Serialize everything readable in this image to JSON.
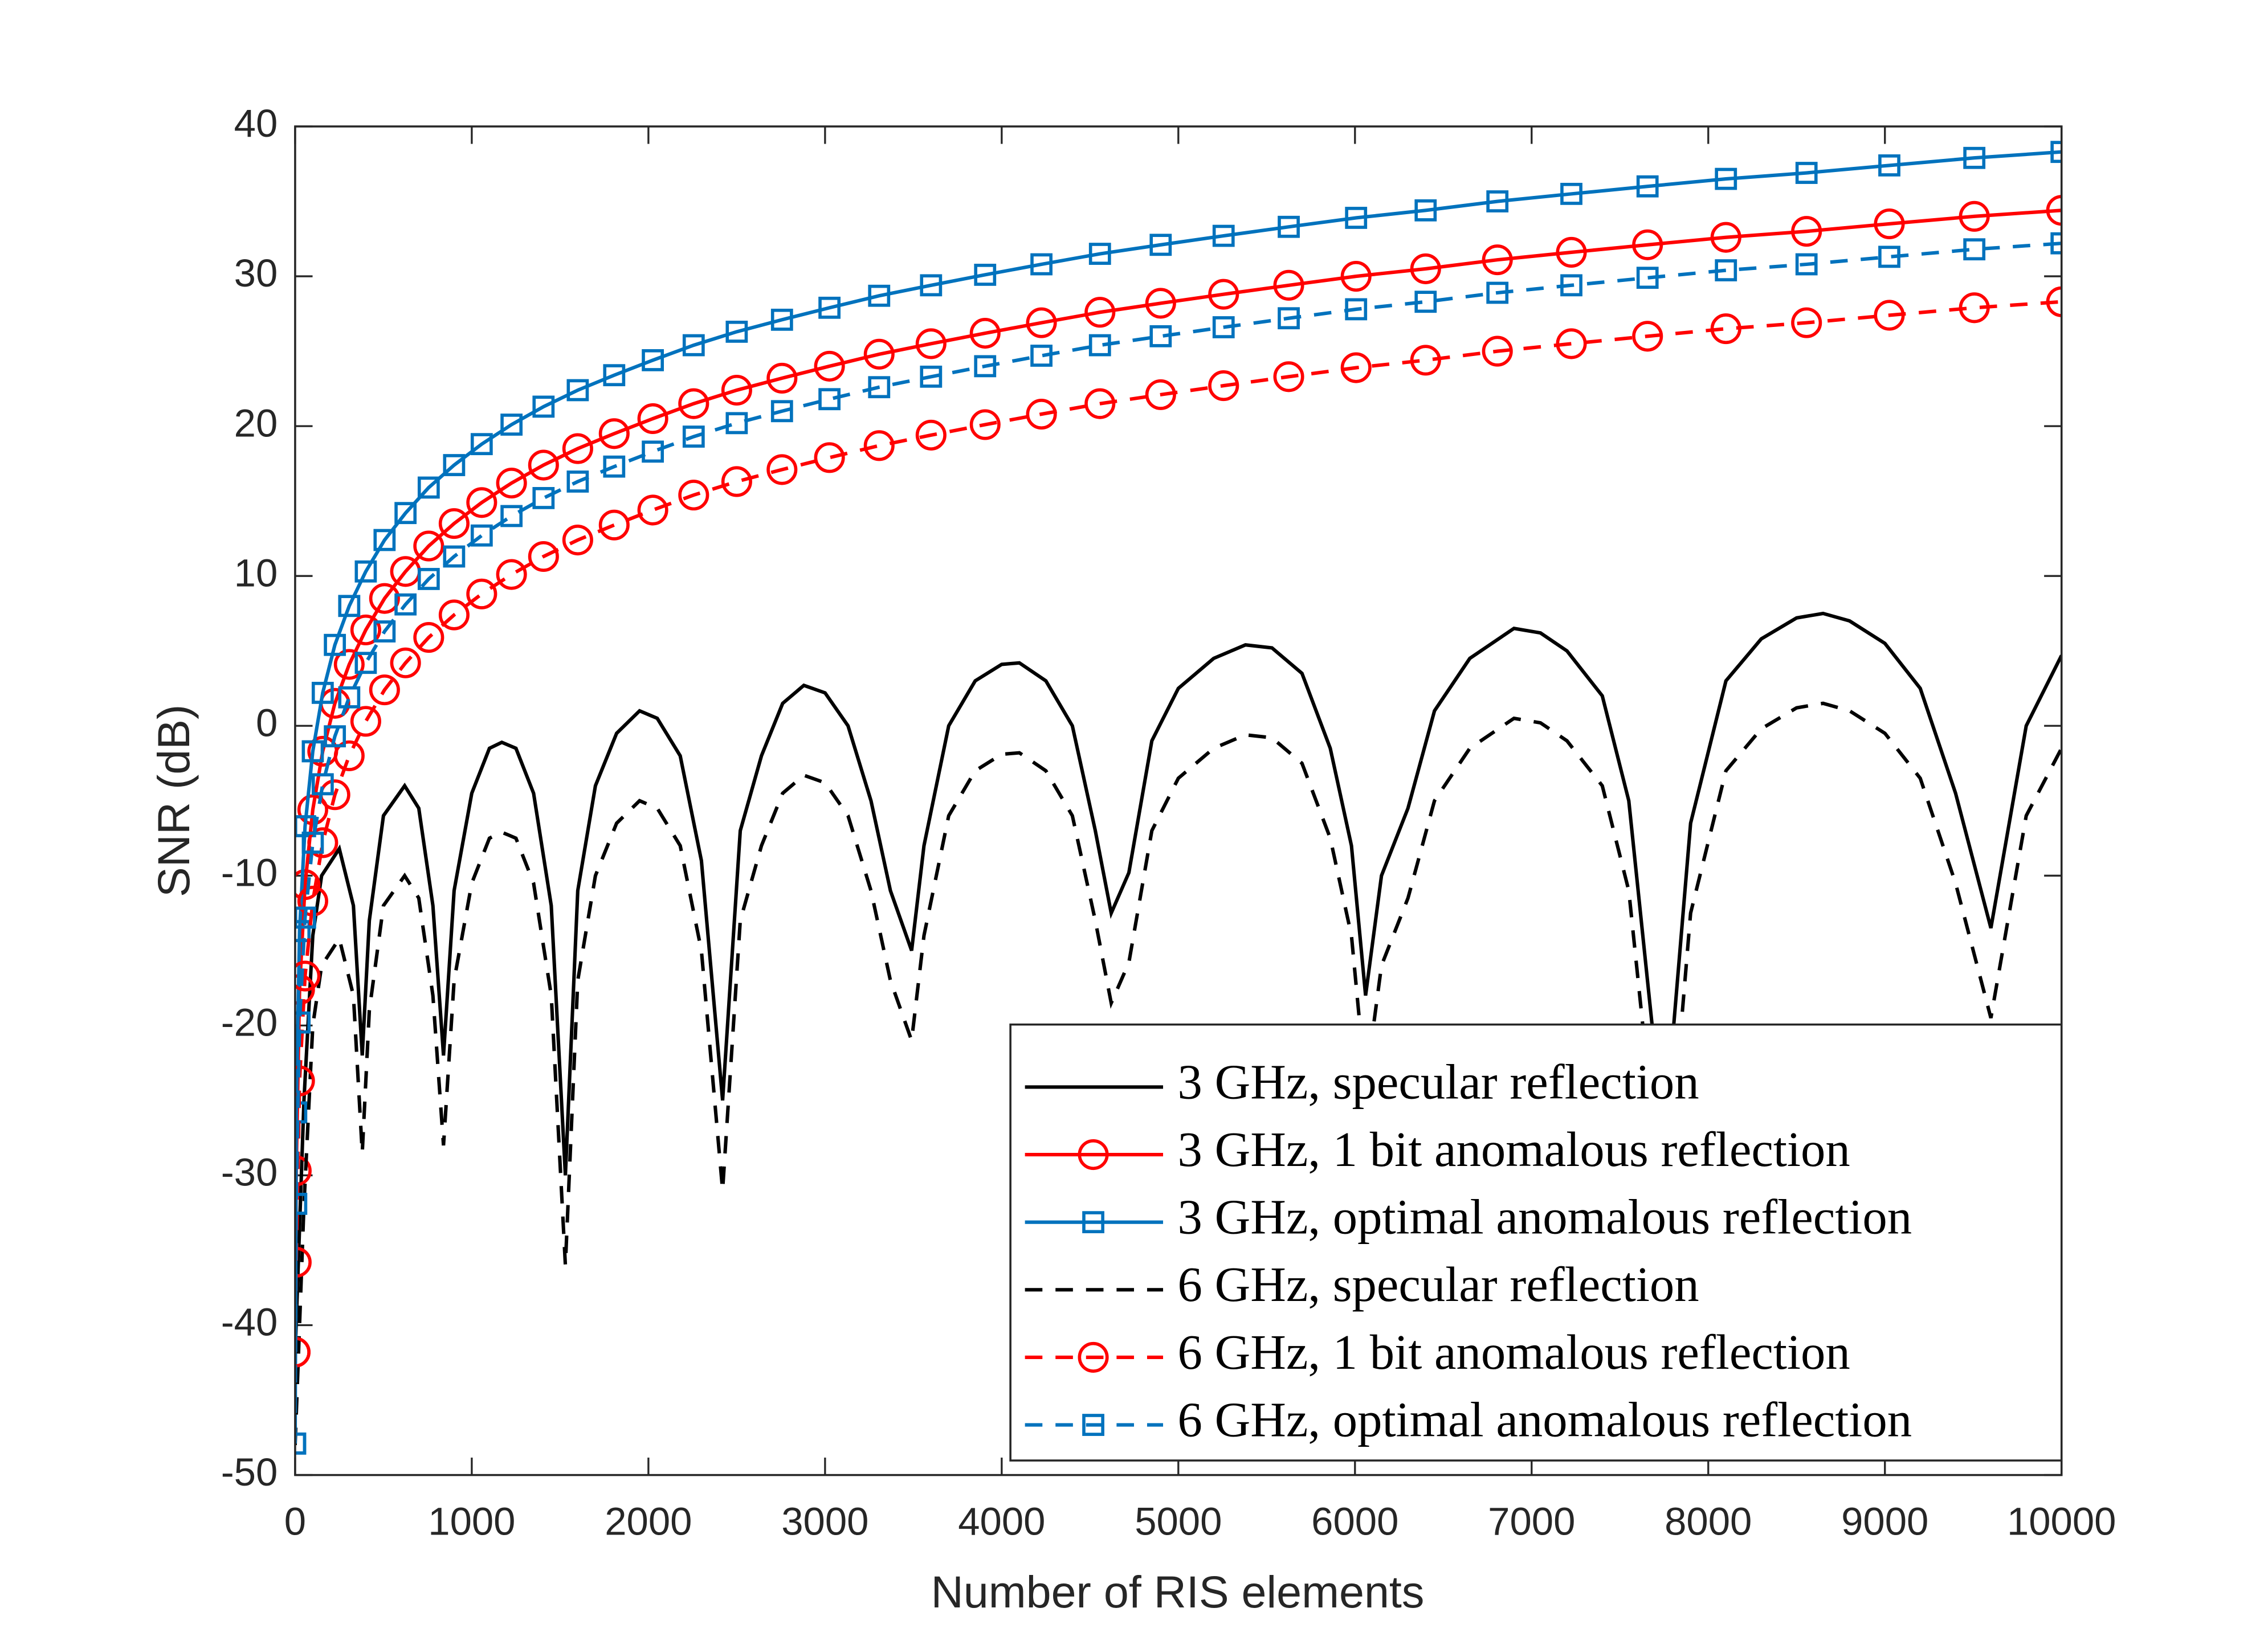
{
  "chart_data": {
    "type": "line",
    "xlabel": "Number of RIS elements",
    "ylabel": "SNR  (dB)",
    "xlim": [
      0,
      10000
    ],
    "xticks": [
      0,
      1000,
      2000,
      3000,
      4000,
      5000,
      6000,
      7000,
      8000,
      9000,
      10000
    ],
    "ylim": [
      -50,
      40
    ],
    "yticks": [
      -50,
      -40,
      -30,
      -20,
      -10,
      0,
      10,
      20,
      30,
      40
    ],
    "legend": "lower right",
    "series": [
      {
        "name": "3 GHz, specular reflection",
        "color": "#000000",
        "linestyle": "solid",
        "marker": "none",
        "x": [
          0,
          50,
          100,
          150,
          250,
          330,
          380,
          420,
          500,
          620,
          700,
          780,
          840,
          900,
          1000,
          1100,
          1170,
          1250,
          1350,
          1450,
          1530,
          1600,
          1700,
          1820,
          1950,
          2050,
          2180,
          2300,
          2420,
          2520,
          2640,
          2760,
          2880,
          3000,
          3130,
          3260,
          3370,
          3490,
          3560,
          3700,
          3850,
          4000,
          4100,
          4250,
          4400,
          4530,
          4620,
          4720,
          4850,
          5000,
          5200,
          5380,
          5530,
          5700,
          5860,
          5980,
          6060,
          6150,
          6300,
          6450,
          6650,
          6900,
          7050,
          7200,
          7400,
          7550,
          7700,
          7790,
          7900,
          8100,
          8300,
          8500,
          8650,
          8800,
          9000,
          9200,
          9400,
          9600,
          9800,
          10000
        ],
        "values": [
          -42,
          -25,
          -14,
          -10,
          -8.2,
          -12,
          -22,
          -13,
          -6,
          -4,
          -5.5,
          -12,
          -22,
          -11,
          -4.5,
          -1.5,
          -1.1,
          -1.5,
          -4.5,
          -12,
          -30,
          -11,
          -4,
          -0.5,
          1,
          0.5,
          -2,
          -9,
          -25,
          -7,
          -2,
          1.5,
          2.7,
          2.2,
          0,
          -5,
          -11,
          -15,
          -8,
          0,
          3,
          4.1,
          4.2,
          3,
          0,
          -7,
          -12.5,
          -9.8,
          -1,
          2.5,
          4.5,
          5.4,
          5.2,
          3.5,
          -1.5,
          -8,
          -18,
          -10,
          -5.5,
          1,
          4.5,
          6.5,
          6.2,
          5,
          2,
          -5,
          -22,
          -22,
          -6.5,
          3,
          5.8,
          7.2,
          7.5,
          7,
          5.5,
          2.5,
          -4.5,
          -13.5,
          0,
          4.7
        ]
      },
      {
        "name": "3 GHz, 1 bit anomalous reflection",
        "color": "#ff0000",
        "linestyle": "solid",
        "marker": "o",
        "x": [
          0,
          6.25,
          25,
          56.25,
          100,
          156.25,
          225,
          306.25,
          400,
          506.25,
          625,
          756.25,
          900,
          1056.25,
          1225,
          1406.25,
          1600,
          1806.25,
          2025,
          2256.25,
          2500,
          2756.25,
          3025,
          3306.25,
          3600,
          3906.25,
          4225,
          4556.25,
          4900,
          5256.25,
          5625,
          6006.25,
          6400,
          6806.25,
          7225,
          7656.25,
          8100,
          8556.25,
          9025,
          9506.25,
          10000
        ],
        "values": [
          -41.8,
          -29.7,
          -17.6,
          -10.6,
          -5.6,
          -1.7,
          1.5,
          4.1,
          6.4,
          8.5,
          10.3,
          12.0,
          13.5,
          14.9,
          16.2,
          17.4,
          18.5,
          19.5,
          20.5,
          21.5,
          22.4,
          23.2,
          24.0,
          24.8,
          25.5,
          26.2,
          26.9,
          27.6,
          28.2,
          28.8,
          29.4,
          30.0,
          30.5,
          31.1,
          31.6,
          32.1,
          32.6,
          33.0,
          33.5,
          34.0,
          34.4
        ]
      },
      {
        "name": "3 GHz, optimal anomalous reflection",
        "color": "#0072bd",
        "linestyle": "solid",
        "marker": "s",
        "x": [
          0,
          6.25,
          25,
          56.25,
          100,
          156.25,
          225,
          306.25,
          400,
          506.25,
          625,
          756.25,
          900,
          1056.25,
          1225,
          1406.25,
          1600,
          1806.25,
          2025,
          2256.25,
          2500,
          2756.25,
          3025,
          3306.25,
          3600,
          3906.25,
          4225,
          4556.25,
          4900,
          5256.25,
          5625,
          6006.25,
          6400,
          6806.25,
          7225,
          7656.25,
          8100,
          8556.25,
          9025,
          9506.25,
          10000
        ],
        "values": [
          -47.9,
          -25.8,
          -13.7,
          -6.7,
          -1.7,
          2.2,
          5.4,
          8.0,
          10.3,
          12.4,
          14.2,
          15.9,
          17.4,
          18.8,
          20.1,
          21.3,
          22.4,
          23.4,
          24.4,
          25.4,
          26.3,
          27.1,
          27.9,
          28.7,
          29.4,
          30.1,
          30.8,
          31.5,
          32.1,
          32.7,
          33.3,
          33.9,
          34.4,
          35.0,
          35.5,
          36.0,
          36.5,
          36.9,
          37.4,
          37.9,
          38.3
        ]
      },
      {
        "name": "6 GHz, specular reflection",
        "color": "#000000",
        "linestyle": "dashed",
        "marker": "none",
        "x": [
          0,
          50,
          100,
          150,
          250,
          330,
          380,
          420,
          500,
          620,
          700,
          780,
          840,
          900,
          1000,
          1100,
          1170,
          1250,
          1350,
          1450,
          1530,
          1600,
          1700,
          1820,
          1950,
          2050,
          2180,
          2300,
          2420,
          2520,
          2640,
          2760,
          2880,
          3000,
          3130,
          3260,
          3370,
          3490,
          3560,
          3700,
          3850,
          4000,
          4100,
          4250,
          4400,
          4530,
          4620,
          4720,
          4850,
          5000,
          5200,
          5380,
          5530,
          5700,
          5860,
          5980,
          6060,
          6150,
          6300,
          6450,
          6650,
          6900,
          7050,
          7200,
          7400,
          7550,
          7700,
          7790,
          7900,
          8100,
          8300,
          8500,
          8650,
          8800,
          9000,
          9200,
          9400,
          9600,
          9800,
          10000
        ],
        "values": [
          -48,
          -32,
          -20,
          -16,
          -14.2,
          -18,
          -28.5,
          -19,
          -12,
          -10,
          -11.5,
          -18,
          -28,
          -17,
          -10.5,
          -7.5,
          -7.1,
          -7.5,
          -10.5,
          -18,
          -36,
          -17,
          -10,
          -6.5,
          -5,
          -5.5,
          -8,
          -15,
          -31,
          -13,
          -8,
          -4.5,
          -3.3,
          -3.8,
          -6,
          -11,
          -17,
          -21,
          -14,
          -6,
          -3,
          -1.9,
          -1.8,
          -3,
          -6,
          -13,
          -18.5,
          -15.8,
          -7,
          -3.5,
          -1.5,
          -0.6,
          -0.8,
          -2.5,
          -7.5,
          -14,
          -24,
          -16,
          -11.5,
          -5,
          -1.5,
          0.5,
          0.2,
          -1,
          -4,
          -11,
          -28,
          -28,
          -12.5,
          -3,
          -0.2,
          1.2,
          1.5,
          1,
          -0.5,
          -3.5,
          -10.5,
          -19.5,
          -6,
          -1.5
        ]
      },
      {
        "name": "6 GHz, 1 bit anomalous reflection",
        "color": "#ff0000",
        "linestyle": "dashed",
        "marker": "o",
        "x": [
          0,
          6.25,
          25,
          56.25,
          100,
          156.25,
          225,
          306.25,
          400,
          506.25,
          625,
          756.25,
          900,
          1056.25,
          1225,
          1406.25,
          1600,
          1806.25,
          2025,
          2256.25,
          2500,
          2756.25,
          3025,
          3306.25,
          3600,
          3906.25,
          4225,
          4556.25,
          4900,
          5256.25,
          5625,
          6006.25,
          6400,
          6806.25,
          7225,
          7656.25,
          8100,
          8556.25,
          9025,
          9506.25,
          10000
        ],
        "values": [
          -41.8,
          -35.8,
          -23.7,
          -16.7,
          -11.7,
          -7.8,
          -4.6,
          -2.0,
          0.3,
          2.4,
          4.2,
          5.9,
          7.4,
          8.8,
          10.1,
          11.3,
          12.4,
          13.4,
          14.4,
          15.4,
          16.3,
          17.1,
          17.9,
          18.7,
          19.4,
          20.1,
          20.8,
          21.5,
          22.1,
          22.7,
          23.3,
          23.9,
          24.4,
          25.0,
          25.5,
          26.0,
          26.5,
          26.9,
          27.4,
          27.9,
          28.3
        ]
      },
      {
        "name": "6 GHz, optimal anomalous reflection",
        "color": "#0072bd",
        "linestyle": "dashed",
        "marker": "s",
        "x": [
          0,
          6.25,
          25,
          56.25,
          100,
          156.25,
          225,
          306.25,
          400,
          506.25,
          625,
          756.25,
          900,
          1056.25,
          1225,
          1406.25,
          1600,
          1806.25,
          2025,
          2256.25,
          2500,
          2756.25,
          3025,
          3306.25,
          3600,
          3906.25,
          4225,
          4556.25,
          4900,
          5256.25,
          5625,
          6006.25,
          6400,
          6806.25,
          7225,
          7656.25,
          8100,
          8556.25,
          9025,
          9506.25,
          10000
        ],
        "values": [
          -47.9,
          -31.9,
          -19.8,
          -12.8,
          -7.8,
          -3.9,
          -0.7,
          1.9,
          4.2,
          6.3,
          8.1,
          9.8,
          11.3,
          12.7,
          14.0,
          15.2,
          16.3,
          17.3,
          18.3,
          19.3,
          20.2,
          21.0,
          21.8,
          22.6,
          23.3,
          24.0,
          24.7,
          25.4,
          26.0,
          26.6,
          27.2,
          27.8,
          28.3,
          28.9,
          29.4,
          29.9,
          30.4,
          30.8,
          31.3,
          31.8,
          32.2
        ]
      }
    ]
  }
}
